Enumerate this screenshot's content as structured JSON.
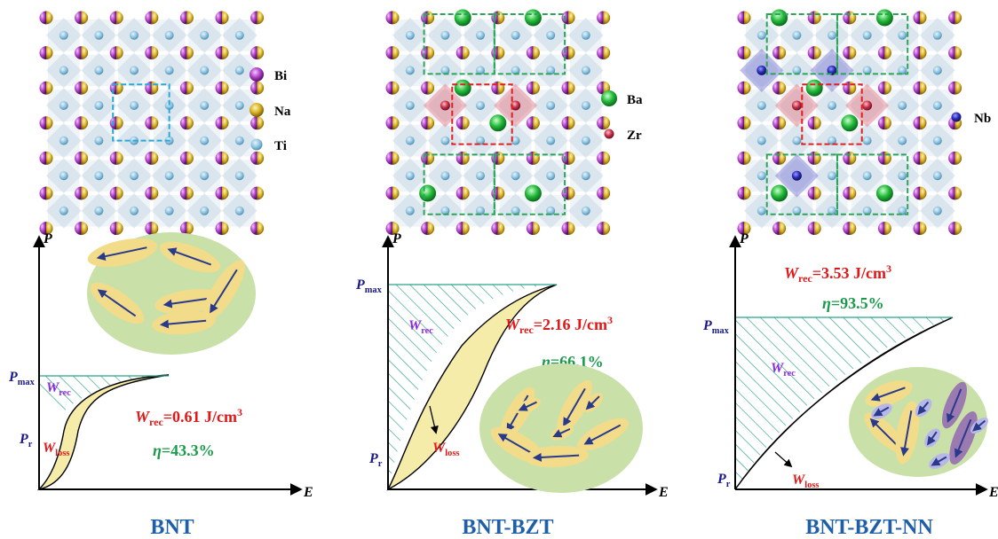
{
  "colors": {
    "bi": "#b040c8",
    "na": "#d8b020",
    "ti": "#7fb8d8",
    "ba": "#22a83a",
    "zr": "#c0304a",
    "nb": "#2a2aa8",
    "hatch": "#2aa58a",
    "loss_fill": "#f4eca8",
    "ellipse_bg": "#c9e0a8",
    "domain": "#f2dc8a",
    "label_blue": "#1a1a8a",
    "label_red": "#e01818",
    "label_purple": "#8a2be2",
    "label_green": "#1a9a4a",
    "title_blue": "#1f5fa8",
    "box_blue": "#29a9d8",
    "box_red": "#e02020",
    "box_green": "#2aa55a"
  },
  "legends": {
    "bnt": [
      {
        "icon": "bi",
        "label": "Bi"
      },
      {
        "icon": "na",
        "label": "Na"
      },
      {
        "icon": "ti",
        "label": "Ti"
      }
    ],
    "bzt": [
      {
        "icon": "ba",
        "label": "Ba"
      },
      {
        "icon": "zr",
        "label": "Zr"
      }
    ],
    "nn": [
      {
        "icon": "nb",
        "label": "Nb"
      }
    ]
  },
  "axes": {
    "p": "P",
    "e": "E"
  },
  "sub": {
    "max": "max",
    "r": "r",
    "rec": "rec",
    "loss": "loss"
  },
  "letters": {
    "p": "P",
    "w": "W",
    "eta": "η"
  },
  "panels": [
    {
      "title": "BNT",
      "wrec_value": "=0.61 J/cm",
      "wrec_exp": "3",
      "eta_value": "=43.3%"
    },
    {
      "title": "BNT-BZT",
      "wrec_value": "=2.16 J/cm",
      "wrec_exp": "3",
      "eta_value": "=66.1%"
    },
    {
      "title": "BNT-BZT-NN",
      "wrec_value": "=3.53 J/cm",
      "wrec_exp": "3",
      "eta_value": "=93.5%"
    }
  ]
}
